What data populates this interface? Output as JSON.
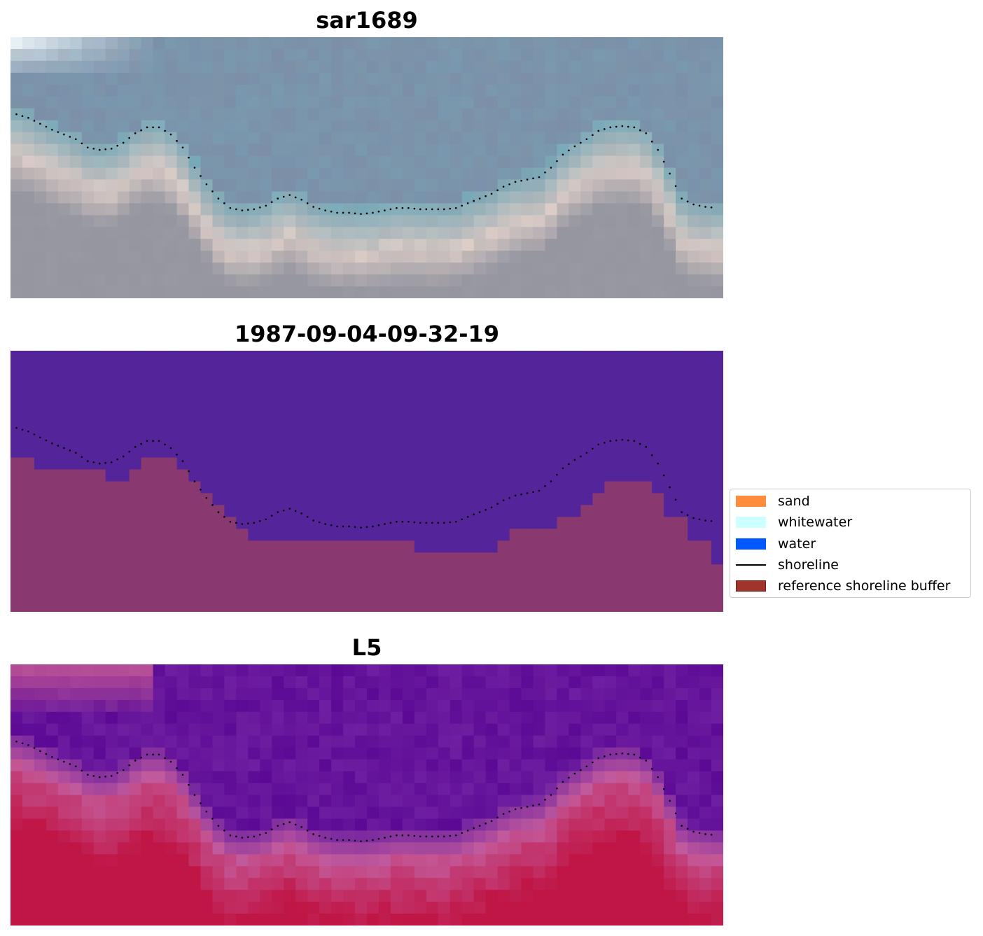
{
  "panels": [
    {
      "title": "sar1689",
      "kind": "rgb"
    },
    {
      "title": "1987-09-04-09-32-19",
      "kind": "classification"
    },
    {
      "title": "L5",
      "kind": "index"
    }
  ],
  "legend": {
    "items": [
      {
        "label": "sand",
        "type": "patch",
        "color": "#ff8c3c"
      },
      {
        "label": "whitewater",
        "type": "patch",
        "color": "#ccffff"
      },
      {
        "label": "water",
        "type": "patch",
        "color": "#0059ff"
      },
      {
        "label": "shoreline",
        "type": "line",
        "color": "#000000"
      },
      {
        "label": "reference shoreline buffer",
        "type": "patch",
        "color": "#a0332b",
        "edge": "#7a1f1a"
      }
    ]
  },
  "colors": {
    "class_water": "#53249a",
    "class_land": "#8a3870",
    "shoreline": "#000000"
  },
  "chart_data": {
    "type": "heatmap",
    "grid": {
      "columns": 60,
      "rows": 22
    },
    "shoreline_points": [
      [
        0.5,
        6.5
      ],
      [
        1.5,
        6.8
      ],
      [
        2.5,
        7.3
      ],
      [
        3.5,
        7.8
      ],
      [
        4.5,
        8.2
      ],
      [
        5.5,
        8.6
      ],
      [
        6.5,
        9.3
      ],
      [
        7.5,
        9.5
      ],
      [
        8.5,
        9.4
      ],
      [
        9.5,
        8.9
      ],
      [
        10.5,
        8.1
      ],
      [
        11.5,
        7.6
      ],
      [
        12.5,
        7.6
      ],
      [
        13.5,
        8.2
      ],
      [
        14.5,
        9.3
      ],
      [
        15.5,
        11.0
      ],
      [
        16.5,
        12.4
      ],
      [
        17.5,
        13.6
      ],
      [
        18.5,
        14.4
      ],
      [
        19.5,
        14.6
      ],
      [
        20.5,
        14.5
      ],
      [
        21.5,
        14.2
      ],
      [
        22.5,
        13.6
      ],
      [
        23.5,
        13.3
      ],
      [
        24.5,
        13.7
      ],
      [
        25.5,
        14.3
      ],
      [
        26.5,
        14.6
      ],
      [
        27.5,
        14.8
      ],
      [
        28.5,
        14.8
      ],
      [
        29.5,
        14.9
      ],
      [
        30.5,
        14.8
      ],
      [
        31.5,
        14.6
      ],
      [
        32.5,
        14.4
      ],
      [
        33.5,
        14.4
      ],
      [
        34.5,
        14.5
      ],
      [
        35.5,
        14.5
      ],
      [
        36.5,
        14.5
      ],
      [
        37.5,
        14.4
      ],
      [
        38.5,
        14.0
      ],
      [
        39.5,
        13.6
      ],
      [
        40.5,
        13.2
      ],
      [
        41.5,
        12.6
      ],
      [
        42.5,
        12.2
      ],
      [
        43.5,
        12.0
      ],
      [
        44.5,
        11.8
      ],
      [
        45.5,
        11.0
      ],
      [
        46.5,
        9.9
      ],
      [
        47.5,
        9.2
      ],
      [
        48.5,
        8.6
      ],
      [
        49.5,
        7.9
      ],
      [
        50.5,
        7.6
      ],
      [
        51.5,
        7.5
      ],
      [
        52.5,
        7.6
      ],
      [
        53.5,
        8.1
      ],
      [
        54.5,
        9.5
      ],
      [
        55.5,
        11.5
      ],
      [
        56.5,
        13.6
      ],
      [
        57.5,
        14.1
      ],
      [
        58.5,
        14.3
      ],
      [
        59.5,
        14.4
      ]
    ],
    "water_boundary_rows": [
      9,
      9,
      10,
      10,
      10,
      10,
      10,
      10,
      11,
      11,
      10,
      9,
      9,
      9,
      10,
      11,
      12,
      13,
      14,
      15,
      16,
      16,
      16,
      16,
      16,
      16,
      16,
      16,
      16,
      16,
      16,
      16,
      16,
      16,
      17,
      17,
      17,
      17,
      17,
      17,
      17,
      16,
      15,
      15,
      15,
      15,
      14,
      14,
      13,
      12,
      11,
      11,
      11,
      11,
      12,
      14,
      14,
      16,
      16,
      18
    ]
  }
}
